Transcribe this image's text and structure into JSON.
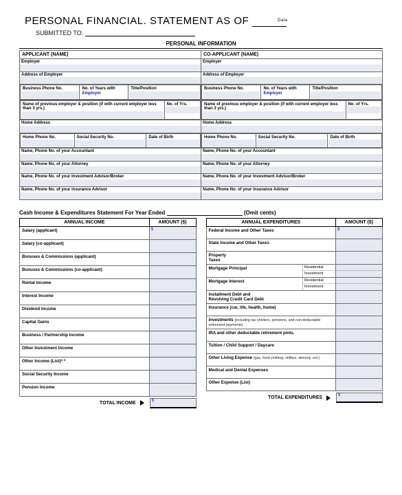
{
  "header": {
    "title_prefix": "PERSONAL FINANCIAL. STATEMENT AS OF",
    "date_label": "Date",
    "submitted_to": "SUBMITTED TO:"
  },
  "pi": {
    "section_title": "PERSONAL INFORMATION",
    "applicant_hdr": "APPLICANT (NAME)",
    "coapplicant_hdr": "CO-APPLICANT (NAME)",
    "employer": "Employer",
    "address_employer": "Address of Employer",
    "business_phone": "Business Phone No.",
    "years_with": "No. of Years with",
    "years_with_sub": "Employer",
    "title_position": "Title/Position",
    "prev_employer": "Name of previous employer & position (if with current employer less than 3 yrs.)",
    "no_of_yrs": "No. of Yrs.",
    "home_address": "Home Address",
    "home_phone": "Home Phone No.",
    "ssn": "Social Security No.",
    "dob": "Date of Birth",
    "accountant": "Name, Phone No. of your Accountant",
    "attorney": "Name, Phone No. of your Attorney",
    "investment_advisor": "Name, Phone No. of your Investment Advisor/Broker",
    "insurance_advisor": "Name, Phone No. of your insurance Advisor"
  },
  "cash": {
    "title_prefix": "Cash Income & Expenditures Statement For Year Ended",
    "omit_cents": "(Omit cents)",
    "income_hdr": "ANNUAL INCOME",
    "amount_hdr": "AMOUNT ($)",
    "expend_hdr": "ANNUAL EXPENDITURES",
    "s_lbl": "$",
    "income_rows": [
      "Salary (applicant)",
      "Salary (co-applicant)",
      "Bonuses & Commissions (applicant)",
      "Bonuses & Commissions (co-applicant)",
      "Rental Income",
      "Interest Income",
      "Dividend Income",
      "Capital Gains",
      "Business / Partnership Income",
      "Other Investment Income",
      "Other Income (List)* *",
      "Social Security Income",
      "Pension Income"
    ],
    "expend": [
      {
        "label": "Federal Income and Other Taxes"
      },
      {
        "label": "State Income and Other Taxes"
      },
      {
        "label": "Property\nTaxes"
      },
      {
        "label": "Mortgage Principal",
        "sub": [
          "Residential",
          "Investment"
        ]
      },
      {
        "label": "Mortgage Interest",
        "sub": [
          "Residential",
          "Investment"
        ]
      },
      {
        "label": "Installment Debt and\nRevolving Credit Card Debt"
      },
      {
        "label": "Insurance (car, life, health, home)"
      },
      {
        "label": "Investments",
        "note": "(including tax shelters, pensions, and non-deductable retirement payments)"
      },
      {
        "label": "IRA and other deductable retirement pmts."
      },
      {
        "label": "Tuition / Child Support / Daycare"
      },
      {
        "label": "Other Living Expense",
        "note": "(gas, food clothing, utilities, alimony, ect.)"
      },
      {
        "label": "Medical and Dental Expenses"
      },
      {
        "label": "Other Expense (List)"
      }
    ],
    "total_income": "TOTAL INCOME",
    "total_expend": "TOTAL EXPENDITURES"
  },
  "colors": {
    "field_bg": "#e6e9f2",
    "border": "#6b6b6b",
    "accent_text": "#1720a0"
  }
}
